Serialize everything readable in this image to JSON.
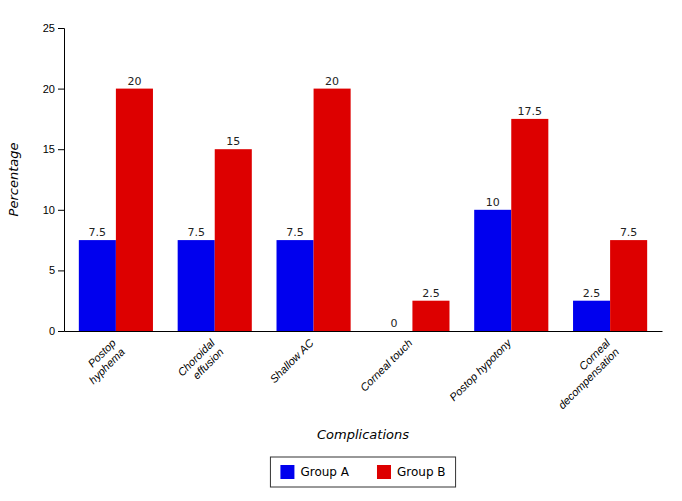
{
  "chart_data": {
    "type": "bar",
    "categories": [
      "Postop\nhyphema",
      "Choroidal\neffusion",
      "Shallow AC",
      "Corneal touch",
      "Postop hypotony",
      "Corneal\ndecompensation"
    ],
    "series": [
      {
        "name": "Group A",
        "color": "#0000ee",
        "values": [
          7.5,
          7.5,
          7.5,
          0,
          10,
          2.5
        ]
      },
      {
        "name": "Group B",
        "color": "#dd0000",
        "values": [
          20,
          15,
          20,
          2.5,
          17.5,
          7.5
        ]
      }
    ],
    "xlabel": "Complications",
    "ylabel": "Percentage",
    "ylim": [
      0,
      25
    ],
    "yticks": [
      0,
      5,
      10,
      15,
      20,
      25
    ],
    "grid": false,
    "legend": "bottom",
    "data_labels": true
  }
}
